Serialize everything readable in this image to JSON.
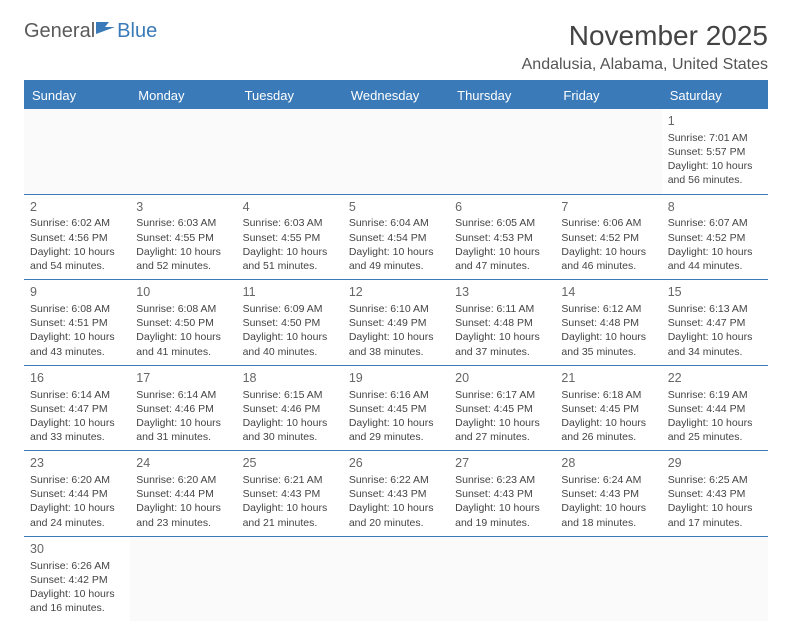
{
  "logo": {
    "part1": "General",
    "part2": "Blue"
  },
  "title": "November 2025",
  "location": "Andalusia, Alabama, United States",
  "colors": {
    "header_bg": "#3a7ab8",
    "header_text": "#ffffff",
    "text": "#444444",
    "page_bg": "#ffffff"
  },
  "day_names": [
    "Sunday",
    "Monday",
    "Tuesday",
    "Wednesday",
    "Thursday",
    "Friday",
    "Saturday"
  ],
  "weeks": [
    [
      null,
      null,
      null,
      null,
      null,
      null,
      {
        "n": "1",
        "sr": "Sunrise: 7:01 AM",
        "ss": "Sunset: 5:57 PM",
        "d1": "Daylight: 10 hours",
        "d2": "and 56 minutes."
      }
    ],
    [
      {
        "n": "2",
        "sr": "Sunrise: 6:02 AM",
        "ss": "Sunset: 4:56 PM",
        "d1": "Daylight: 10 hours",
        "d2": "and 54 minutes."
      },
      {
        "n": "3",
        "sr": "Sunrise: 6:03 AM",
        "ss": "Sunset: 4:55 PM",
        "d1": "Daylight: 10 hours",
        "d2": "and 52 minutes."
      },
      {
        "n": "4",
        "sr": "Sunrise: 6:03 AM",
        "ss": "Sunset: 4:55 PM",
        "d1": "Daylight: 10 hours",
        "d2": "and 51 minutes."
      },
      {
        "n": "5",
        "sr": "Sunrise: 6:04 AM",
        "ss": "Sunset: 4:54 PM",
        "d1": "Daylight: 10 hours",
        "d2": "and 49 minutes."
      },
      {
        "n": "6",
        "sr": "Sunrise: 6:05 AM",
        "ss": "Sunset: 4:53 PM",
        "d1": "Daylight: 10 hours",
        "d2": "and 47 minutes."
      },
      {
        "n": "7",
        "sr": "Sunrise: 6:06 AM",
        "ss": "Sunset: 4:52 PM",
        "d1": "Daylight: 10 hours",
        "d2": "and 46 minutes."
      },
      {
        "n": "8",
        "sr": "Sunrise: 6:07 AM",
        "ss": "Sunset: 4:52 PM",
        "d1": "Daylight: 10 hours",
        "d2": "and 44 minutes."
      }
    ],
    [
      {
        "n": "9",
        "sr": "Sunrise: 6:08 AM",
        "ss": "Sunset: 4:51 PM",
        "d1": "Daylight: 10 hours",
        "d2": "and 43 minutes."
      },
      {
        "n": "10",
        "sr": "Sunrise: 6:08 AM",
        "ss": "Sunset: 4:50 PM",
        "d1": "Daylight: 10 hours",
        "d2": "and 41 minutes."
      },
      {
        "n": "11",
        "sr": "Sunrise: 6:09 AM",
        "ss": "Sunset: 4:50 PM",
        "d1": "Daylight: 10 hours",
        "d2": "and 40 minutes."
      },
      {
        "n": "12",
        "sr": "Sunrise: 6:10 AM",
        "ss": "Sunset: 4:49 PM",
        "d1": "Daylight: 10 hours",
        "d2": "and 38 minutes."
      },
      {
        "n": "13",
        "sr": "Sunrise: 6:11 AM",
        "ss": "Sunset: 4:48 PM",
        "d1": "Daylight: 10 hours",
        "d2": "and 37 minutes."
      },
      {
        "n": "14",
        "sr": "Sunrise: 6:12 AM",
        "ss": "Sunset: 4:48 PM",
        "d1": "Daylight: 10 hours",
        "d2": "and 35 minutes."
      },
      {
        "n": "15",
        "sr": "Sunrise: 6:13 AM",
        "ss": "Sunset: 4:47 PM",
        "d1": "Daylight: 10 hours",
        "d2": "and 34 minutes."
      }
    ],
    [
      {
        "n": "16",
        "sr": "Sunrise: 6:14 AM",
        "ss": "Sunset: 4:47 PM",
        "d1": "Daylight: 10 hours",
        "d2": "and 33 minutes."
      },
      {
        "n": "17",
        "sr": "Sunrise: 6:14 AM",
        "ss": "Sunset: 4:46 PM",
        "d1": "Daylight: 10 hours",
        "d2": "and 31 minutes."
      },
      {
        "n": "18",
        "sr": "Sunrise: 6:15 AM",
        "ss": "Sunset: 4:46 PM",
        "d1": "Daylight: 10 hours",
        "d2": "and 30 minutes."
      },
      {
        "n": "19",
        "sr": "Sunrise: 6:16 AM",
        "ss": "Sunset: 4:45 PM",
        "d1": "Daylight: 10 hours",
        "d2": "and 29 minutes."
      },
      {
        "n": "20",
        "sr": "Sunrise: 6:17 AM",
        "ss": "Sunset: 4:45 PM",
        "d1": "Daylight: 10 hours",
        "d2": "and 27 minutes."
      },
      {
        "n": "21",
        "sr": "Sunrise: 6:18 AM",
        "ss": "Sunset: 4:45 PM",
        "d1": "Daylight: 10 hours",
        "d2": "and 26 minutes."
      },
      {
        "n": "22",
        "sr": "Sunrise: 6:19 AM",
        "ss": "Sunset: 4:44 PM",
        "d1": "Daylight: 10 hours",
        "d2": "and 25 minutes."
      }
    ],
    [
      {
        "n": "23",
        "sr": "Sunrise: 6:20 AM",
        "ss": "Sunset: 4:44 PM",
        "d1": "Daylight: 10 hours",
        "d2": "and 24 minutes."
      },
      {
        "n": "24",
        "sr": "Sunrise: 6:20 AM",
        "ss": "Sunset: 4:44 PM",
        "d1": "Daylight: 10 hours",
        "d2": "and 23 minutes."
      },
      {
        "n": "25",
        "sr": "Sunrise: 6:21 AM",
        "ss": "Sunset: 4:43 PM",
        "d1": "Daylight: 10 hours",
        "d2": "and 21 minutes."
      },
      {
        "n": "26",
        "sr": "Sunrise: 6:22 AM",
        "ss": "Sunset: 4:43 PM",
        "d1": "Daylight: 10 hours",
        "d2": "and 20 minutes."
      },
      {
        "n": "27",
        "sr": "Sunrise: 6:23 AM",
        "ss": "Sunset: 4:43 PM",
        "d1": "Daylight: 10 hours",
        "d2": "and 19 minutes."
      },
      {
        "n": "28",
        "sr": "Sunrise: 6:24 AM",
        "ss": "Sunset: 4:43 PM",
        "d1": "Daylight: 10 hours",
        "d2": "and 18 minutes."
      },
      {
        "n": "29",
        "sr": "Sunrise: 6:25 AM",
        "ss": "Sunset: 4:43 PM",
        "d1": "Daylight: 10 hours",
        "d2": "and 17 minutes."
      }
    ],
    [
      {
        "n": "30",
        "sr": "Sunrise: 6:26 AM",
        "ss": "Sunset: 4:42 PM",
        "d1": "Daylight: 10 hours",
        "d2": "and 16 minutes."
      },
      null,
      null,
      null,
      null,
      null,
      null
    ]
  ]
}
